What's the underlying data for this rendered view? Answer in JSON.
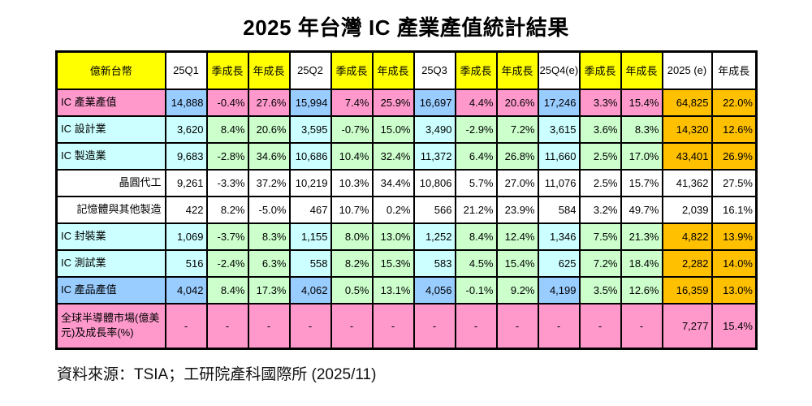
{
  "title": "2025 年台灣 IC 產業產值統計結果",
  "footer": {
    "text": "資料來源：TSIA；工研院產科國際所 (2025/11)"
  },
  "colors": {
    "yellow": "#FFFF00",
    "pink": "#FF99CC",
    "blue": "#99CCFF",
    "cyan": "#CCFFFF",
    "green": "#CCFFCC",
    "orange": "#FFC000",
    "white": "#FFFFFF",
    "border": "#000000"
  },
  "table": {
    "header": [
      {
        "label": "億新台幣",
        "bg": "yellow"
      },
      {
        "label": "25Q1",
        "bg": "white"
      },
      {
        "label": "季成長",
        "bg": "yellow"
      },
      {
        "label": "年成長",
        "bg": "yellow"
      },
      {
        "label": "25Q2",
        "bg": "white"
      },
      {
        "label": "季成長",
        "bg": "yellow"
      },
      {
        "label": "年成長",
        "bg": "yellow"
      },
      {
        "label": "25Q3",
        "bg": "white"
      },
      {
        "label": "季成長",
        "bg": "yellow"
      },
      {
        "label": "年成長",
        "bg": "yellow"
      },
      {
        "label": "25Q4(e)",
        "bg": "white"
      },
      {
        "label": "季成長",
        "bg": "yellow"
      },
      {
        "label": "年成長",
        "bg": "yellow"
      },
      {
        "label": "2025 (e)",
        "bg": "white"
      },
      {
        "label": "年成長",
        "bg": "white"
      }
    ],
    "rows": [
      {
        "label": "IC 產業產值",
        "label_align": "left",
        "cells": [
          "14,888",
          "-0.4%",
          "27.6%",
          "15,994",
          "7.4%",
          "25.9%",
          "16,697",
          "4.4%",
          "20.6%",
          "17,246",
          "3.3%",
          "15.4%",
          "64,825",
          "22.0%"
        ],
        "bg": [
          "pink",
          "blue",
          "pink",
          "pink",
          "blue",
          "pink",
          "pink",
          "blue",
          "pink",
          "pink",
          "blue",
          "pink",
          "pink",
          "orange",
          "orange"
        ]
      },
      {
        "label": "IC 設計業",
        "label_align": "left",
        "cells": [
          "3,620",
          "8.4%",
          "20.6%",
          "3,595",
          "-0.7%",
          "15.0%",
          "3,490",
          "-2.9%",
          "7.2%",
          "3,615",
          "3.6%",
          "8.3%",
          "14,320",
          "12.6%"
        ],
        "bg": [
          "cyan",
          "cyan",
          "green",
          "green",
          "cyan",
          "green",
          "green",
          "cyan",
          "green",
          "green",
          "cyan",
          "green",
          "green",
          "orange",
          "orange"
        ]
      },
      {
        "label": "IC 製造業",
        "label_align": "left",
        "cells": [
          "9,683",
          "-2.8%",
          "34.6%",
          "10,686",
          "10.4%",
          "32.4%",
          "11,372",
          "6.4%",
          "26.8%",
          "11,660",
          "2.5%",
          "17.0%",
          "43,401",
          "26.9%"
        ],
        "bg": [
          "cyan",
          "cyan",
          "green",
          "green",
          "cyan",
          "green",
          "green",
          "cyan",
          "green",
          "green",
          "cyan",
          "green",
          "green",
          "orange",
          "orange"
        ]
      },
      {
        "label": "晶圓代工",
        "label_align": "right",
        "cells": [
          "9,261",
          "-3.3%",
          "37.2%",
          "10,219",
          "10.3%",
          "34.4%",
          "10,806",
          "5.7%",
          "27.0%",
          "11,076",
          "2.5%",
          "15.7%",
          "41,362",
          "27.5%"
        ],
        "bg": [
          "white",
          "white",
          "white",
          "white",
          "white",
          "white",
          "white",
          "white",
          "white",
          "white",
          "white",
          "white",
          "white",
          "white",
          "white"
        ]
      },
      {
        "label": "記憶體與其他製造",
        "label_align": "right",
        "cells": [
          "422",
          "8.2%",
          "-5.0%",
          "467",
          "10.7%",
          "0.2%",
          "566",
          "21.2%",
          "23.9%",
          "584",
          "3.2%",
          "49.7%",
          "2,039",
          "16.1%"
        ],
        "bg": [
          "white",
          "white",
          "white",
          "white",
          "white",
          "white",
          "white",
          "white",
          "white",
          "white",
          "white",
          "white",
          "white",
          "white",
          "white"
        ]
      },
      {
        "label": "IC 封裝業",
        "label_align": "left",
        "cells": [
          "1,069",
          "-3.7%",
          "8.3%",
          "1,155",
          "8.0%",
          "13.0%",
          "1,252",
          "8.4%",
          "12.4%",
          "1,346",
          "7.5%",
          "21.3%",
          "4,822",
          "13.9%"
        ],
        "bg": [
          "cyan",
          "cyan",
          "green",
          "green",
          "cyan",
          "green",
          "green",
          "cyan",
          "green",
          "green",
          "cyan",
          "green",
          "green",
          "orange",
          "orange"
        ]
      },
      {
        "label": "IC 測試業",
        "label_align": "left",
        "cells": [
          "516",
          "-2.4%",
          "6.3%",
          "558",
          "8.2%",
          "15.3%",
          "583",
          "4.5%",
          "15.4%",
          "625",
          "7.2%",
          "18.4%",
          "2,282",
          "14.0%"
        ],
        "bg": [
          "cyan",
          "cyan",
          "green",
          "green",
          "cyan",
          "green",
          "green",
          "cyan",
          "green",
          "green",
          "cyan",
          "green",
          "green",
          "orange",
          "orange"
        ]
      },
      {
        "label": "IC 產品產值",
        "label_align": "left",
        "cells": [
          "4,042",
          "8.4%",
          "17.3%",
          "4,062",
          "0.5%",
          "13.1%",
          "4,056",
          "-0.1%",
          "9.2%",
          "4,199",
          "3.5%",
          "12.6%",
          "16,359",
          "13.0%"
        ],
        "bg": [
          "blue",
          "blue",
          "green",
          "green",
          "blue",
          "green",
          "green",
          "blue",
          "green",
          "green",
          "blue",
          "green",
          "green",
          "orange",
          "orange"
        ]
      },
      {
        "label": "全球半導體市場(億美元)及成長率(%)",
        "label_align": "left",
        "cells": [
          "-",
          "-",
          "-",
          "-",
          "-",
          "-",
          "-",
          "-",
          "-",
          "-",
          "-",
          "-",
          "7,277",
          "15.4%"
        ],
        "bg": [
          "pink",
          "pink",
          "pink",
          "pink",
          "pink",
          "pink",
          "pink",
          "pink",
          "pink",
          "pink",
          "pink",
          "pink",
          "pink",
          "pink",
          "pink"
        ]
      }
    ]
  },
  "chart_data": {
    "type": "table",
    "title": "2025 年台灣 IC 產業產值統計結果",
    "unit": "億新台幣",
    "source": "資料來源：TSIA；工研院產科國際所 (2025/11)",
    "columns": [
      "25Q1",
      "季成長",
      "年成長",
      "25Q2",
      "季成長",
      "年成長",
      "25Q3",
      "季成長",
      "年成長",
      "25Q4(e)",
      "季成長",
      "年成長",
      "2025 (e)",
      "年成長"
    ],
    "rows": [
      {
        "label": "IC 產業產值",
        "values": [
          14888,
          "-0.4%",
          "27.6%",
          15994,
          "7.4%",
          "25.9%",
          16697,
          "4.4%",
          "20.6%",
          17246,
          "3.3%",
          "15.4%",
          64825,
          "22.0%"
        ]
      },
      {
        "label": "IC 設計業",
        "values": [
          3620,
          "8.4%",
          "20.6%",
          3595,
          "-0.7%",
          "15.0%",
          3490,
          "-2.9%",
          "7.2%",
          3615,
          "3.6%",
          "8.3%",
          14320,
          "12.6%"
        ]
      },
      {
        "label": "IC 製造業",
        "values": [
          9683,
          "-2.8%",
          "34.6%",
          10686,
          "10.4%",
          "32.4%",
          11372,
          "6.4%",
          "26.8%",
          11660,
          "2.5%",
          "17.0%",
          43401,
          "26.9%"
        ]
      },
      {
        "label": "晶圓代工",
        "values": [
          9261,
          "-3.3%",
          "37.2%",
          10219,
          "10.3%",
          "34.4%",
          10806,
          "5.7%",
          "27.0%",
          11076,
          "2.5%",
          "15.7%",
          41362,
          "27.5%"
        ]
      },
      {
        "label": "記憶體與其他製造",
        "values": [
          422,
          "8.2%",
          "-5.0%",
          467,
          "10.7%",
          "0.2%",
          566,
          "21.2%",
          "23.9%",
          584,
          "3.2%",
          "49.7%",
          2039,
          "16.1%"
        ]
      },
      {
        "label": "IC 封裝業",
        "values": [
          1069,
          "-3.7%",
          "8.3%",
          1155,
          "8.0%",
          "13.0%",
          1252,
          "8.4%",
          "12.4%",
          1346,
          "7.5%",
          "21.3%",
          4822,
          "13.9%"
        ]
      },
      {
        "label": "IC 測試業",
        "values": [
          516,
          "-2.4%",
          "6.3%",
          558,
          "8.2%",
          "15.3%",
          583,
          "4.5%",
          "15.4%",
          625,
          "7.2%",
          "18.4%",
          2282,
          "14.0%"
        ]
      },
      {
        "label": "IC 產品產值",
        "values": [
          4042,
          "8.4%",
          "17.3%",
          4062,
          "0.5%",
          "13.1%",
          4056,
          "-0.1%",
          "9.2%",
          4199,
          "3.5%",
          "12.6%",
          16359,
          "13.0%"
        ]
      },
      {
        "label": "全球半導體市場(億美元)及成長率(%)",
        "values": [
          "-",
          "-",
          "-",
          "-",
          "-",
          "-",
          "-",
          "-",
          "-",
          "-",
          "-",
          "-",
          7277,
          "15.4%"
        ]
      }
    ]
  }
}
